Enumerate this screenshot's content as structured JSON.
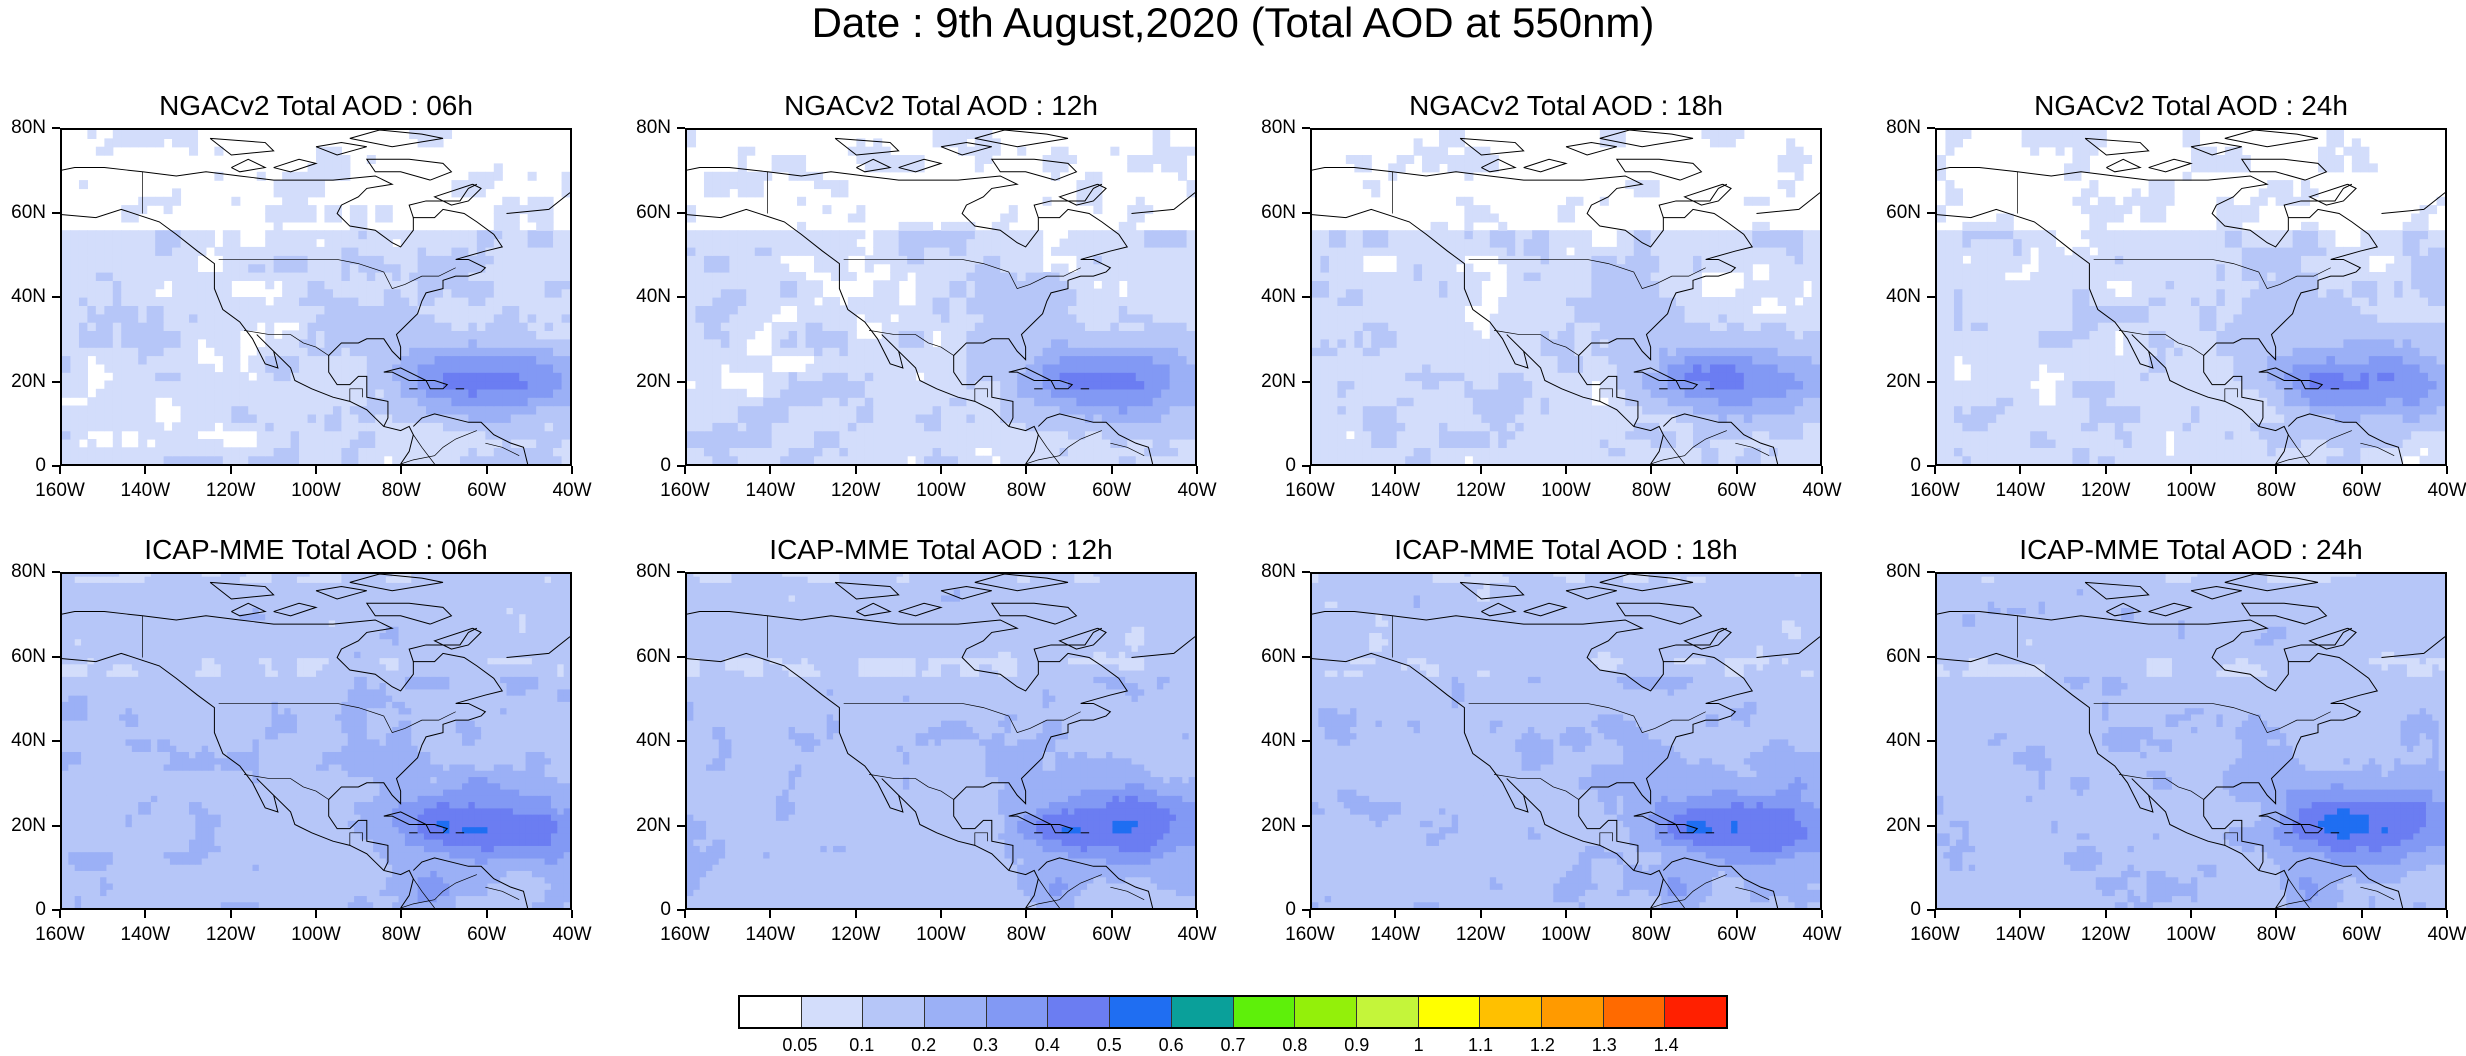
{
  "title": "Date : 9th August,2020 (Total AOD at 550nm)",
  "panels": [
    {
      "title": "NGACv2 Total AOD : 06h",
      "model": "NGACv2",
      "hour": "06h"
    },
    {
      "title": "NGACv2 Total AOD : 12h",
      "model": "NGACv2",
      "hour": "12h"
    },
    {
      "title": "NGACv2 Total AOD : 18h",
      "model": "NGACv2",
      "hour": "18h"
    },
    {
      "title": "NGACv2 Total AOD : 24h",
      "model": "NGACv2",
      "hour": "24h"
    },
    {
      "title": "ICAP-MME Total AOD : 06h",
      "model": "ICAP-MME",
      "hour": "06h"
    },
    {
      "title": "ICAP-MME Total AOD : 12h",
      "model": "ICAP-MME",
      "hour": "12h"
    },
    {
      "title": "ICAP-MME Total AOD : 18h",
      "model": "ICAP-MME",
      "hour": "18h"
    },
    {
      "title": "ICAP-MME Total AOD : 24h",
      "model": "ICAP-MME",
      "hour": "24h"
    }
  ],
  "axes": {
    "lat_ticks": [
      "0",
      "20N",
      "40N",
      "60N",
      "80N"
    ],
    "lon_ticks": [
      "160W",
      "140W",
      "120W",
      "100W",
      "80W",
      "60W",
      "40W"
    ],
    "lat_range": [
      0,
      80
    ],
    "lon_range": [
      -160,
      -40
    ]
  },
  "colorbar": {
    "labels": [
      "0.05",
      "0.1",
      "0.2",
      "0.3",
      "0.4",
      "0.5",
      "0.6",
      "0.7",
      "0.8",
      "0.9",
      "1",
      "1.1",
      "1.2",
      "1.3",
      "1.4"
    ],
    "colors": [
      "#ffffff",
      "#d3ddfb",
      "#b6c6f8",
      "#9bb0f6",
      "#8299f4",
      "#6b7df2",
      "#1f6ef2",
      "#0aa09a",
      "#5ef00a",
      "#93f00a",
      "#c4f53a",
      "#ffff00",
      "#ffc000",
      "#ff9a00",
      "#ff6a00",
      "#ff2000"
    ]
  }
}
